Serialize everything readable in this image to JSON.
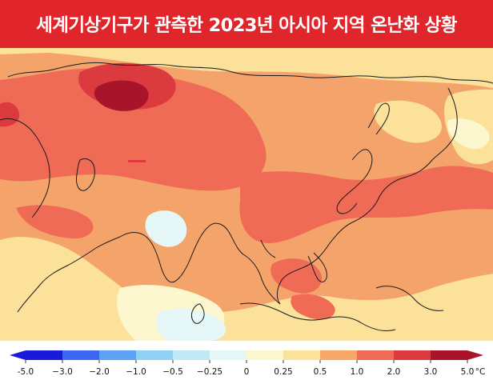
{
  "title": "세계기상기구가 관측한 2023년 아시아 지역 온난화 상황",
  "colors": {
    "title_bg": "#e0252b",
    "title_text": "#ffffff",
    "coastline": "#1a1a1a"
  },
  "legend": {
    "unit": "°C",
    "bins": [
      {
        "from": "-5.0",
        "to": "-3.0",
        "color": "#1a1ad9"
      },
      {
        "from": "-3.0",
        "to": "-2.0",
        "color": "#3a66f0"
      },
      {
        "from": "-2.0",
        "to": "-1.0",
        "color": "#5aa3f5"
      },
      {
        "from": "-1.0",
        "to": "-0.5",
        "color": "#8fd0f7"
      },
      {
        "from": "-0.5",
        "to": "-0.25",
        "color": "#bfe9f6"
      },
      {
        "from": "-0.25",
        "to": "0",
        "color": "#e6f7f8"
      },
      {
        "from": "0",
        "to": "0.25",
        "color": "#fcf7cf"
      },
      {
        "from": "0.25",
        "to": "0.5",
        "color": "#fbe19a"
      },
      {
        "from": "0.5",
        "to": "1.0",
        "color": "#f7a766"
      },
      {
        "from": "1.0",
        "to": "2.0",
        "color": "#ef6b55"
      },
      {
        "from": "2.0",
        "to": "3.0",
        "color": "#db3a3f"
      },
      {
        "from": "3.0",
        "to": "5.0",
        "color": "#a8152a"
      }
    ],
    "ticks": [
      "-5.0",
      "−3.0",
      "−2.0",
      "−1.0",
      "−0.5",
      "−0.25",
      "0",
      "0.25",
      "0.5",
      "1.0",
      "2.0",
      "3.0",
      "5.0"
    ]
  }
}
